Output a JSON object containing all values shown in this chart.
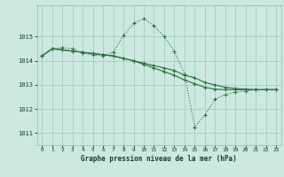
{
  "xlabel": "Graphe pression niveau de la mer (hPa)",
  "bg_color": "#cce8e0",
  "grid_color": "#99ccbb",
  "line_color": "#2d6e3e",
  "ylim": [
    1010.5,
    1016.3
  ],
  "xlim": [
    -0.5,
    23.5
  ],
  "yticks": [
    1011,
    1012,
    1013,
    1014,
    1015
  ],
  "xticks": [
    0,
    1,
    2,
    3,
    4,
    5,
    6,
    7,
    8,
    9,
    10,
    11,
    12,
    13,
    14,
    15,
    16,
    17,
    18,
    19,
    20,
    21,
    22,
    23
  ],
  "series1_x": [
    0,
    1,
    2,
    3,
    4,
    5,
    6,
    7,
    8,
    9,
    10,
    11,
    12,
    13,
    14,
    15,
    16,
    17,
    18,
    19,
    20,
    21,
    22,
    23
  ],
  "series1_y": [
    1014.2,
    1014.5,
    1014.45,
    1014.4,
    1014.35,
    1014.3,
    1014.25,
    1014.2,
    1014.1,
    1014.0,
    1013.9,
    1013.8,
    1013.7,
    1013.6,
    1013.4,
    1013.3,
    1013.1,
    1013.0,
    1012.9,
    1012.85,
    1012.82,
    1012.8,
    1012.8,
    1012.8
  ],
  "series2_x": [
    0,
    1,
    2,
    3,
    4,
    5,
    6,
    7,
    8,
    9,
    10,
    11,
    12,
    13,
    14,
    15,
    16,
    17,
    18,
    19,
    20,
    21,
    22,
    23
  ],
  "series2_y": [
    1014.2,
    1014.5,
    1014.45,
    1014.4,
    1014.35,
    1014.3,
    1014.25,
    1014.2,
    1014.1,
    1014.0,
    1013.85,
    1013.7,
    1013.55,
    1013.4,
    1013.2,
    1013.05,
    1012.9,
    1012.82,
    1012.8,
    1012.8,
    1012.8,
    1012.8,
    1012.8,
    1012.8
  ],
  "series3_x": [
    0,
    1,
    2,
    3,
    4,
    5,
    6,
    7,
    8,
    9,
    10,
    11,
    12,
    13,
    14,
    15,
    16,
    17,
    18,
    19,
    20,
    21,
    22,
    23
  ],
  "series3_y": [
    1014.2,
    1014.5,
    1014.55,
    1014.5,
    1014.3,
    1014.25,
    1014.2,
    1014.35,
    1015.05,
    1015.55,
    1015.75,
    1015.45,
    1015.0,
    1014.4,
    1013.45,
    1011.25,
    1011.75,
    1012.4,
    1012.6,
    1012.7,
    1012.75,
    1012.8,
    1012.8,
    1012.8
  ]
}
